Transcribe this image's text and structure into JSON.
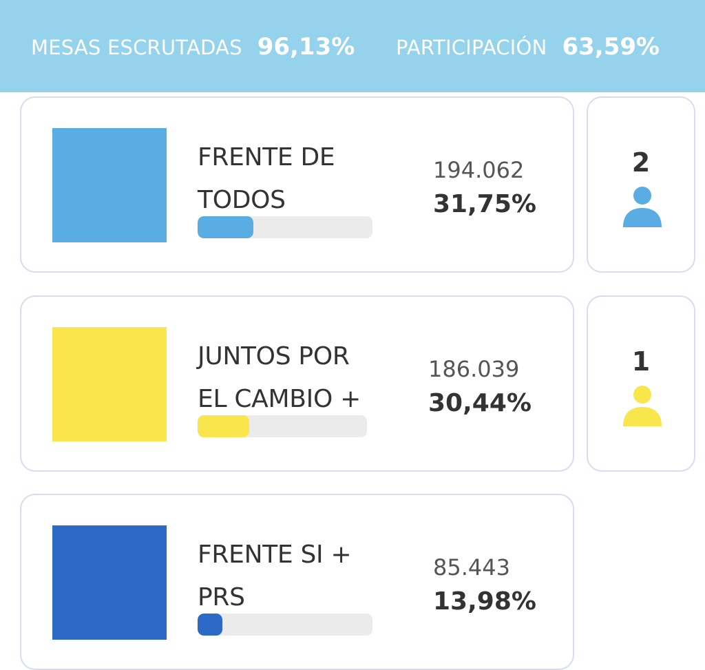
{
  "header": {
    "mesas_label": "MESAS ESCRUTADAS",
    "mesas_value": "96,13%",
    "participacion_label": "PARTICIPACIÓN",
    "participacion_value": "63,59%",
    "background_color": "#95d2ec"
  },
  "parties": [
    {
      "name_line1": "FRENTE DE",
      "name_line2": "TODOS",
      "votes": "194.062",
      "percent": "31,75%",
      "percent_value": 31.75,
      "color": "#5aade3",
      "seats": "2",
      "seat_icon": "person-icon"
    },
    {
      "name_line1": "JUNTOS POR",
      "name_line2": "EL CAMBIO +",
      "votes": "186.039",
      "percent": "30,44%",
      "percent_value": 30.44,
      "color": "#f9e64c",
      "seats": "1",
      "seat_icon": "person-icon"
    },
    {
      "name_line1": "FRENTE SI +",
      "name_line2": "PRS",
      "votes": "85.443",
      "percent": "13,98%",
      "percent_value": 13.98,
      "color": "#2d6ac8"
    }
  ]
}
